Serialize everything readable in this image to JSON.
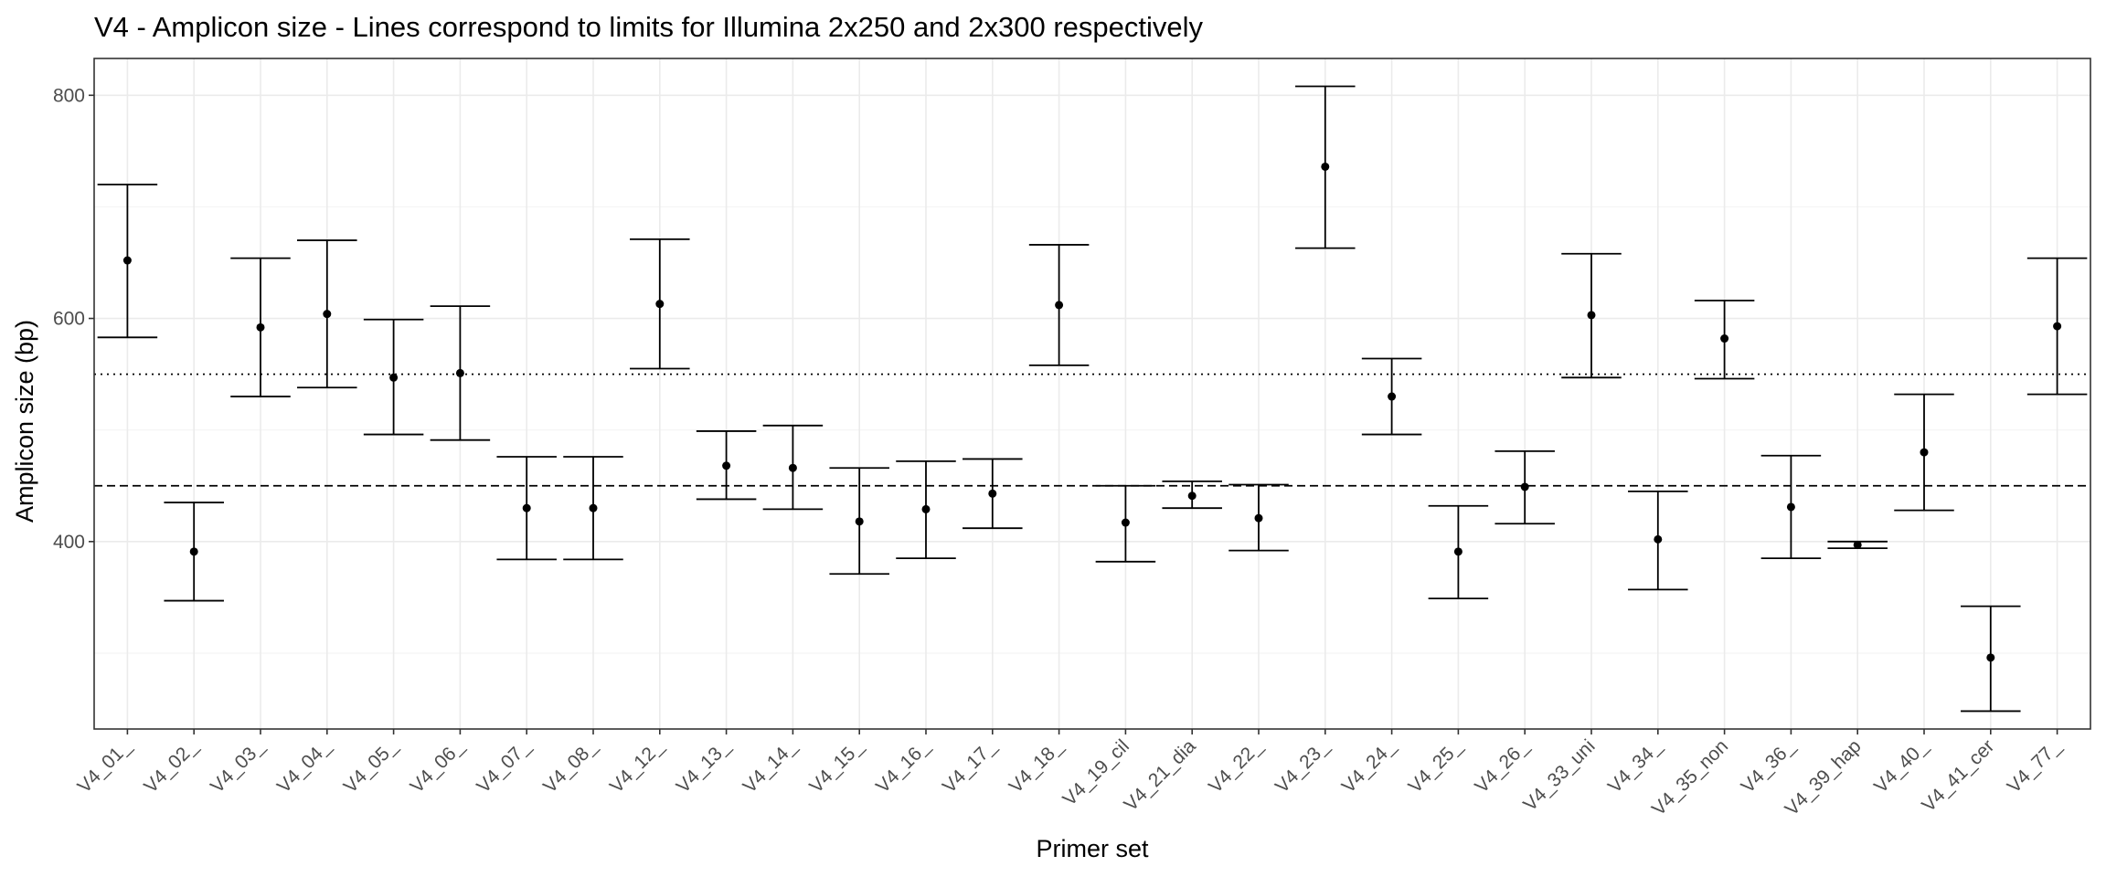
{
  "chart_data": {
    "type": "errorbar",
    "title": "V4 - Amplicon size - Lines correspond to limits for Illumina 2x250 and 2x300 respectively",
    "xlabel": "Primer set",
    "ylabel": "Amplicon size (bp)",
    "ylim": [
      232,
      833
    ],
    "yticks": [
      400,
      600,
      800
    ],
    "grid": true,
    "reference_lines": [
      {
        "y": 450,
        "style": "dashed"
      },
      {
        "y": 550,
        "style": "dotted"
      }
    ],
    "categories": [
      "V4_01_",
      "V4_02_",
      "V4_03_",
      "V4_04_",
      "V4_05_",
      "V4_06_",
      "V4_07_",
      "V4_08_",
      "V4_12_",
      "V4_13_",
      "V4_14_",
      "V4_15_",
      "V4_16_",
      "V4_17_",
      "V4_18_",
      "V4_19_cil",
      "V4_21_dia",
      "V4_22_",
      "V4_23_",
      "V4_24_",
      "V4_25_",
      "V4_26_",
      "V4_33_uni",
      "V4_34_",
      "V4_35_non",
      "V4_36_",
      "V4_39_hap",
      "V4_40_",
      "V4_41_cer",
      "V4_77_"
    ],
    "mean": [
      652,
      391,
      592,
      604,
      547,
      551,
      430,
      430,
      613,
      468,
      466,
      418,
      429,
      443,
      612,
      417,
      441,
      421,
      736,
      530,
      391,
      449,
      603,
      402,
      582,
      431,
      397,
      480,
      296,
      593
    ],
    "lower": [
      583,
      347,
      530,
      538,
      496,
      491,
      384,
      384,
      555,
      438,
      429,
      371,
      385,
      412,
      558,
      382,
      430,
      392,
      663,
      496,
      349,
      416,
      547,
      357,
      546,
      385,
      394,
      428,
      248,
      532
    ],
    "upper": [
      720,
      435,
      654,
      670,
      599,
      611,
      476,
      476,
      671,
      499,
      504,
      466,
      472,
      474,
      666,
      450,
      454,
      451,
      808,
      564,
      432,
      481,
      658,
      445,
      616,
      477,
      400,
      532,
      342,
      654
    ]
  }
}
